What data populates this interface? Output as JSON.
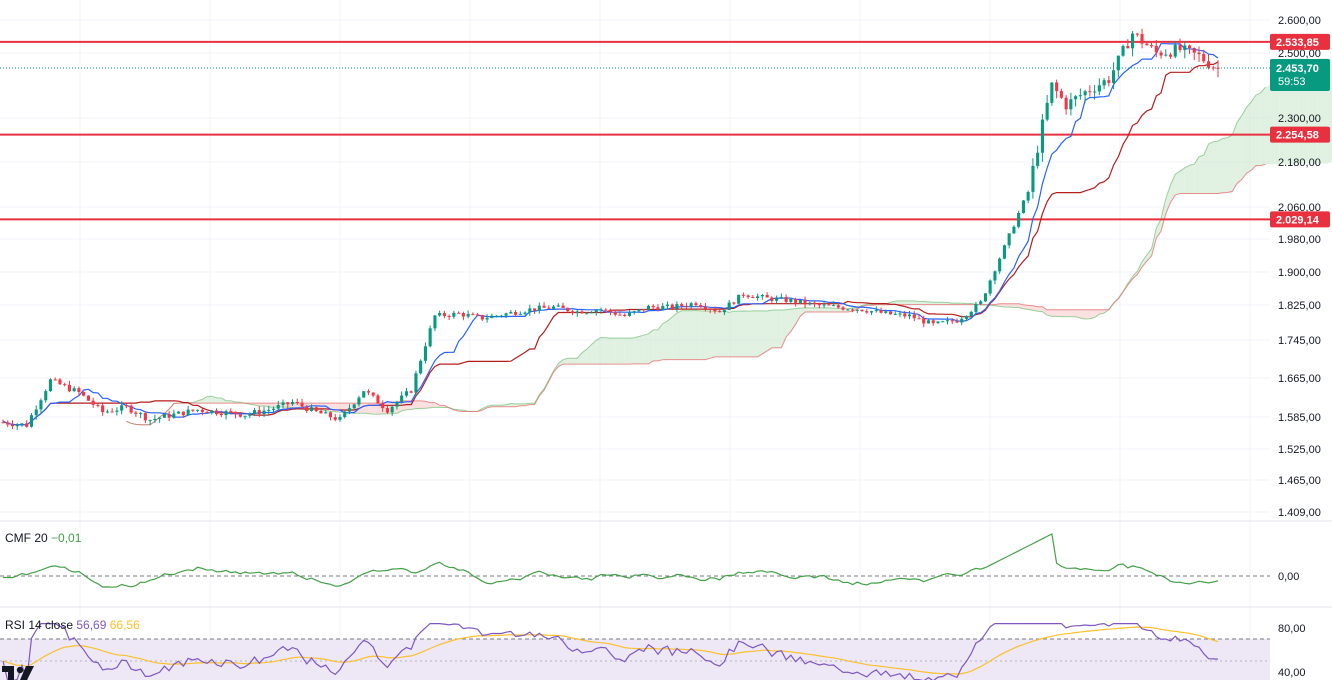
{
  "chart_data": {
    "type": "candlestick",
    "colors": {
      "up": "#089981",
      "down": "#f23645",
      "level_line": "#e8303f",
      "tenkan": "#2962ff",
      "kijun": "#b71c1c",
      "cloud_bull": "#c8e6c9",
      "cloud_bear": "#f8c7c7",
      "cmf": "#43a047",
      "rsi": "#7e57c2",
      "rsi_ma": "#fbc02d",
      "rsi_band": "#ede7f6",
      "price_tag": "#089981"
    },
    "price_axis": {
      "ticks": [
        "2.600,00",
        "2.500,00",
        "2.300,00",
        "2.180,00",
        "2.060,00",
        "1.980,00",
        "1.900,00",
        "1.825,00",
        "1.745,00",
        "1.665,00",
        "1.585,00",
        "1.525,00",
        "1.465,00",
        "1.409,00"
      ]
    },
    "levels": [
      {
        "label": "2.533,85",
        "value": 2533.85
      },
      {
        "label": "2.254,58",
        "value": 2254.58
      },
      {
        "label": "2.029,14",
        "value": 2029.14
      }
    ],
    "current_price": {
      "label": "2.453,70",
      "value": 2453.7,
      "countdown": "59:53"
    },
    "cmf": {
      "name": "CMF",
      "length": "20",
      "value_label": "−0,01",
      "zero_label": "0,00",
      "range": [
        -0.25,
        0.45
      ]
    },
    "rsi": {
      "name": "RSI",
      "length": "14",
      "source": "close",
      "value_label": "56,69",
      "ma_label": "66,56",
      "ticks": [
        "80,00",
        "40,00"
      ],
      "upper": 70,
      "lower": 30
    }
  },
  "brand": {
    "logo": "tradingview-logo"
  }
}
